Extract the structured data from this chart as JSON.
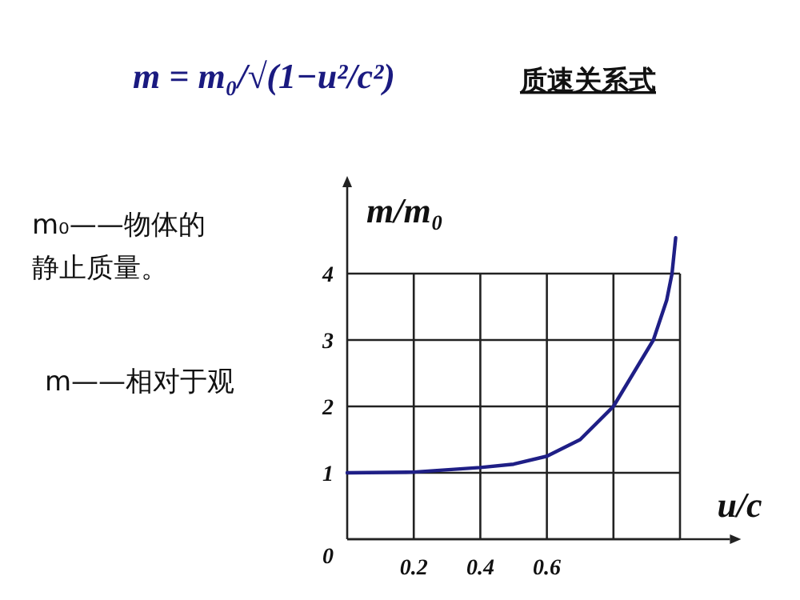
{
  "chart_data": {
    "type": "line",
    "title": "质速关系式",
    "xlabel": "u/c",
    "ylabel": "m/m₀",
    "annotations": [
      "m = m₀/√(1−u²/c²)",
      "m₀——物体的静止质量。",
      "m——相对于观"
    ],
    "x": [
      0,
      0.2,
      0.4,
      0.5,
      0.6,
      0.7,
      0.8,
      0.86,
      0.92,
      0.96,
      0.976,
      0.987
    ],
    "series": [
      {
        "color": "#1f1f86",
        "values": [
          1,
          1.01,
          1.08,
          1.13,
          1.25,
          1.5,
          2.0,
          2.5,
          3.0,
          3.6,
          4.0,
          4.54
        ]
      }
    ],
    "xlim": [
      0,
      1.15
    ],
    "ylim": [
      0,
      5.3
    ],
    "xticks": [
      0.2,
      0.4,
      0.6,
      {
        "value": 0.8,
        "label": null
      },
      {
        "value": 1.0,
        "label": null
      }
    ],
    "yticks": [
      0,
      1,
      2,
      3,
      4
    ],
    "grid": true
  }
}
